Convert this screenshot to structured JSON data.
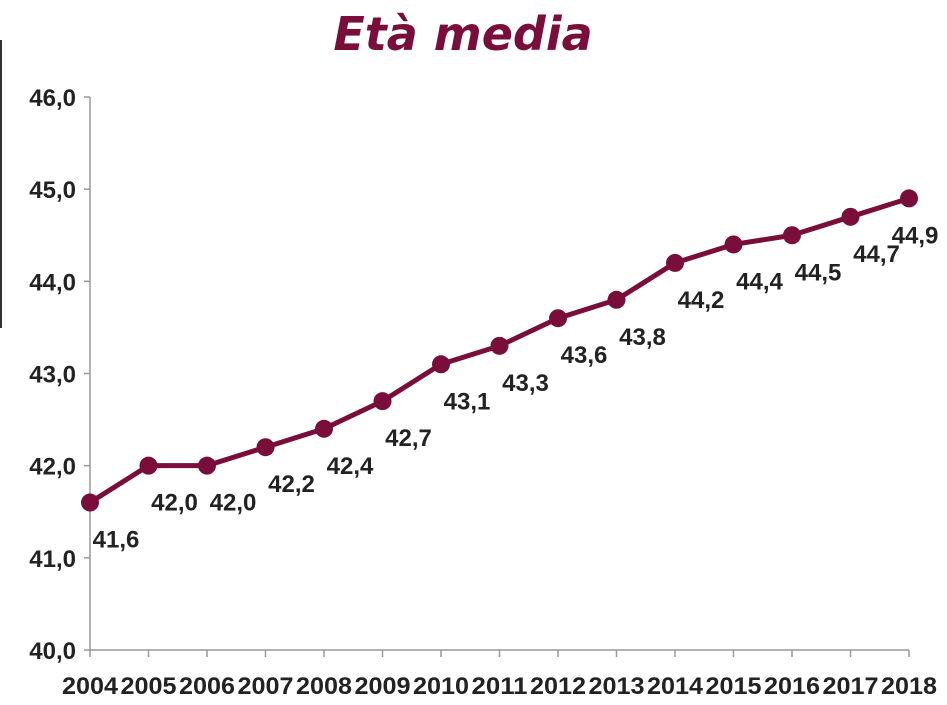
{
  "chart_data": {
    "type": "line",
    "title": "Età media",
    "categories": [
      "2004",
      "2005",
      "2006",
      "2007",
      "2008",
      "2009",
      "2010",
      "2011",
      "2012",
      "2013",
      "2014",
      "2015",
      "2016",
      "2017",
      "2018"
    ],
    "values": [
      41.6,
      42.0,
      42.0,
      42.2,
      42.4,
      42.7,
      43.1,
      43.3,
      43.6,
      43.8,
      44.2,
      44.4,
      44.5,
      44.7,
      44.9
    ],
    "data_labels": [
      "41,6",
      "42,0",
      "42,0",
      "42,2",
      "42,4",
      "42,7",
      "43,1",
      "43,3",
      "43,6",
      "43,8",
      "44,2",
      "44,4",
      "44,5",
      "44,7",
      "44,9"
    ],
    "ylim": [
      40,
      46
    ],
    "yticks": [
      "40,0",
      "41,0",
      "42,0",
      "43,0",
      "44,0",
      "45,0",
      "46,0"
    ],
    "xlabel": "",
    "ylabel": "",
    "grid": false,
    "legend": "none",
    "colors": {
      "series": "#7a0e3a",
      "title": "#7a0e3a",
      "axis": "#999999",
      "text": "#222222"
    }
  }
}
